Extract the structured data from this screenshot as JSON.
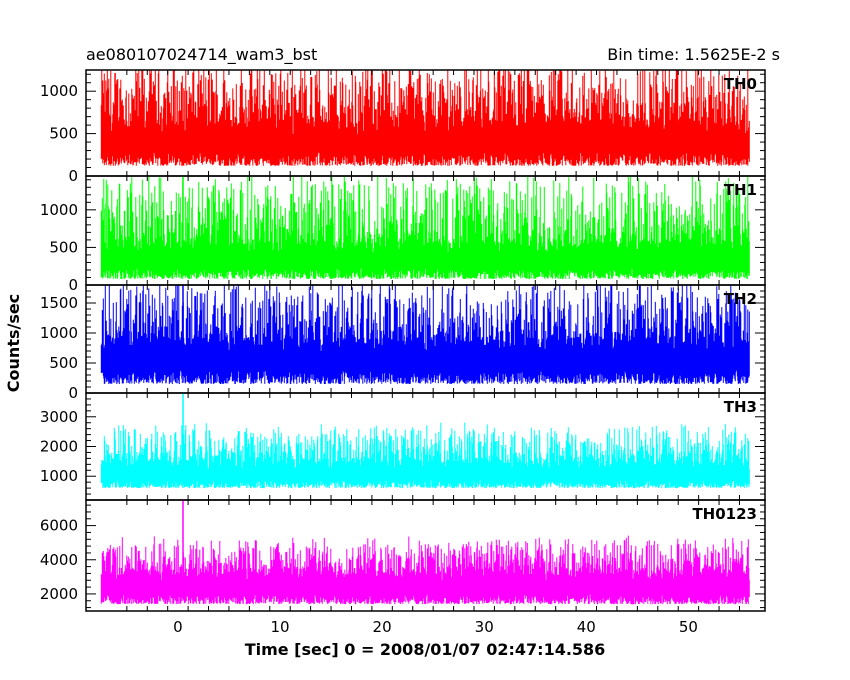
{
  "header": {
    "title": "ae080107024714_wam3_bst",
    "bin_time": "Bin time: 1.5625E-2 s"
  },
  "chart_data": {
    "type": "line",
    "ylabel": "Counts/sec",
    "xlabel": "Time [sec] 0 = 2008/01/07 02:47:14.586",
    "xlim": [
      -9,
      57.5
    ],
    "x_ticks": [
      0,
      10,
      20,
      30,
      40,
      50
    ],
    "x_tick_labels": [
      "0",
      "10",
      "20",
      "30",
      "40",
      "50"
    ],
    "data_x_range": [
      -7.5,
      56
    ],
    "spike_x": 0.5,
    "panels": [
      {
        "name": "TH0",
        "color": "#ff0000",
        "ylim": [
          0,
          1250
        ],
        "y_ticks": [
          0,
          500,
          1000
        ],
        "y_tick_labels": [
          "0",
          "500",
          "1000"
        ],
        "base": 120,
        "mean": 470,
        "peak": 1250,
        "spike": null
      },
      {
        "name": "TH1",
        "color": "#00ff00",
        "ylim": [
          0,
          1450
        ],
        "y_ticks": [
          0,
          500,
          1000
        ],
        "y_tick_labels": [
          "0",
          "500",
          "1000"
        ],
        "base": 80,
        "mean": 400,
        "peak": 1350,
        "spike": 1450
      },
      {
        "name": "TH2",
        "color": "#0000ff",
        "ylim": [
          0,
          1800
        ],
        "y_ticks": [
          0,
          500,
          1000,
          1500
        ],
        "y_tick_labels": [
          "0",
          "500",
          "1000",
          "1500"
        ],
        "base": 150,
        "mean": 650,
        "peak": 1700,
        "spike": 1800
      },
      {
        "name": "TH3",
        "color": "#00ffff",
        "ylim": [
          200,
          3800
        ],
        "y_ticks": [
          1000,
          2000,
          3000
        ],
        "y_tick_labels": [
          "1000",
          "2000",
          "3000"
        ],
        "base": 600,
        "mean": 1200,
        "peak": 2500,
        "spike": 3800
      },
      {
        "name": "TH0123",
        "color": "#ff00ff",
        "ylim": [
          1000,
          7500
        ],
        "y_ticks": [
          2000,
          4000,
          6000
        ],
        "y_tick_labels": [
          "2000",
          "4000",
          "6000"
        ],
        "base": 1400,
        "mean": 2700,
        "peak": 4800,
        "spike": 7500
      }
    ]
  }
}
